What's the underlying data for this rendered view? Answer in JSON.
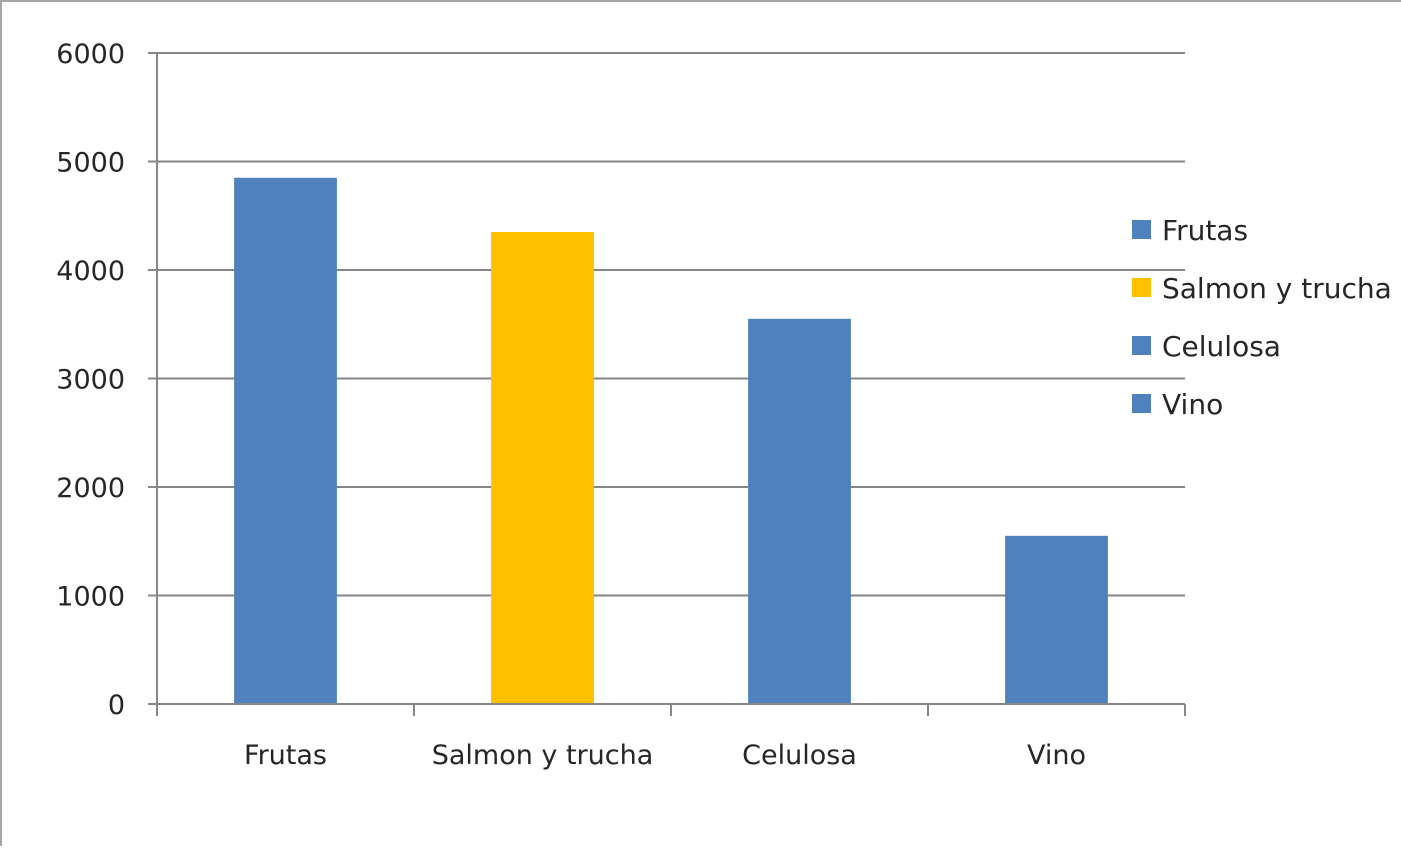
{
  "chart_data": {
    "type": "bar",
    "categories": [
      "Frutas",
      "Salmon y trucha",
      "Celulosa",
      "Vino"
    ],
    "values": [
      4850,
      4350,
      3550,
      1550
    ],
    "colors": [
      "#4f81bd",
      "#ffc000",
      "#4f81bd",
      "#4f81bd"
    ],
    "title": "",
    "xlabel": "",
    "ylabel": "",
    "ylim": [
      0,
      6000
    ],
    "yticks": [
      0,
      1000,
      2000,
      3000,
      4000,
      5000,
      6000
    ],
    "grid": true,
    "legend": {
      "placement": "right",
      "entries": [
        {
          "label": "Frutas",
          "color": "#4f81bd"
        },
        {
          "label": "Salmon y trucha",
          "color": "#ffc000"
        },
        {
          "label": "Celulosa",
          "color": "#4f81bd"
        },
        {
          "label": "Vino",
          "color": "#4f81bd"
        }
      ]
    }
  }
}
